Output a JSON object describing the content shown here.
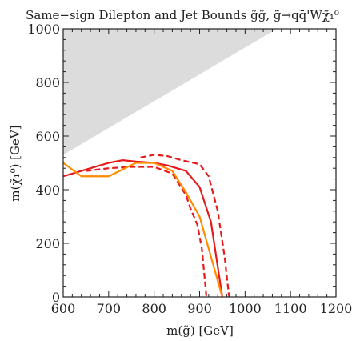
{
  "chart_data": {
    "type": "line",
    "title": "Same−sign Dilepton and Jet Bounds g̃g̃, g̃→qq̄'Wχ̃₁⁰",
    "xlabel": "m(g̃) [GeV]",
    "ylabel": "m(χ̃₁⁰) [GeV]",
    "xlim": [
      600,
      1200
    ],
    "ylim": [
      0,
      1000
    ],
    "xticks": [
      600,
      700,
      800,
      900,
      1000,
      1100,
      1200
    ],
    "yticks": [
      0,
      200,
      400,
      600,
      800,
      1000
    ],
    "grid": false,
    "excluded_region": {
      "color": "#dcdcdc",
      "points": [
        [
          600,
          1000
        ],
        [
          1070,
          1000
        ],
        [
          600,
          530
        ]
      ]
    },
    "series": [
      {
        "color": "#e41a1c",
        "style": "solid",
        "x": [
          600,
          640,
          680,
          700,
          730,
          760,
          800,
          830,
          870,
          900,
          925,
          950
        ],
        "y": [
          450,
          470,
          490,
          500,
          510,
          505,
          500,
          490,
          470,
          410,
          280,
          0
        ]
      },
      {
        "color": "#e41a1c",
        "style": "dashed",
        "x": [
          650,
          700,
          750,
          800,
          840,
          870,
          880,
          895,
          905,
          915
        ],
        "y": [
          470,
          480,
          485,
          485,
          460,
          380,
          330,
          270,
          180,
          0
        ]
      },
      {
        "color": "#e41a1c",
        "style": "dashed",
        "x": [
          770,
          800,
          830,
          860,
          900,
          920,
          940,
          955,
          965
        ],
        "y": [
          520,
          530,
          525,
          510,
          495,
          450,
          320,
          150,
          0
        ]
      },
      {
        "color": "#ff8c00",
        "style": "solid",
        "x": [
          600,
          640,
          660,
          700,
          760,
          800,
          840,
          870,
          900,
          950
        ],
        "y": [
          500,
          450,
          450,
          450,
          500,
          500,
          470,
          390,
          300,
          0
        ]
      }
    ]
  }
}
